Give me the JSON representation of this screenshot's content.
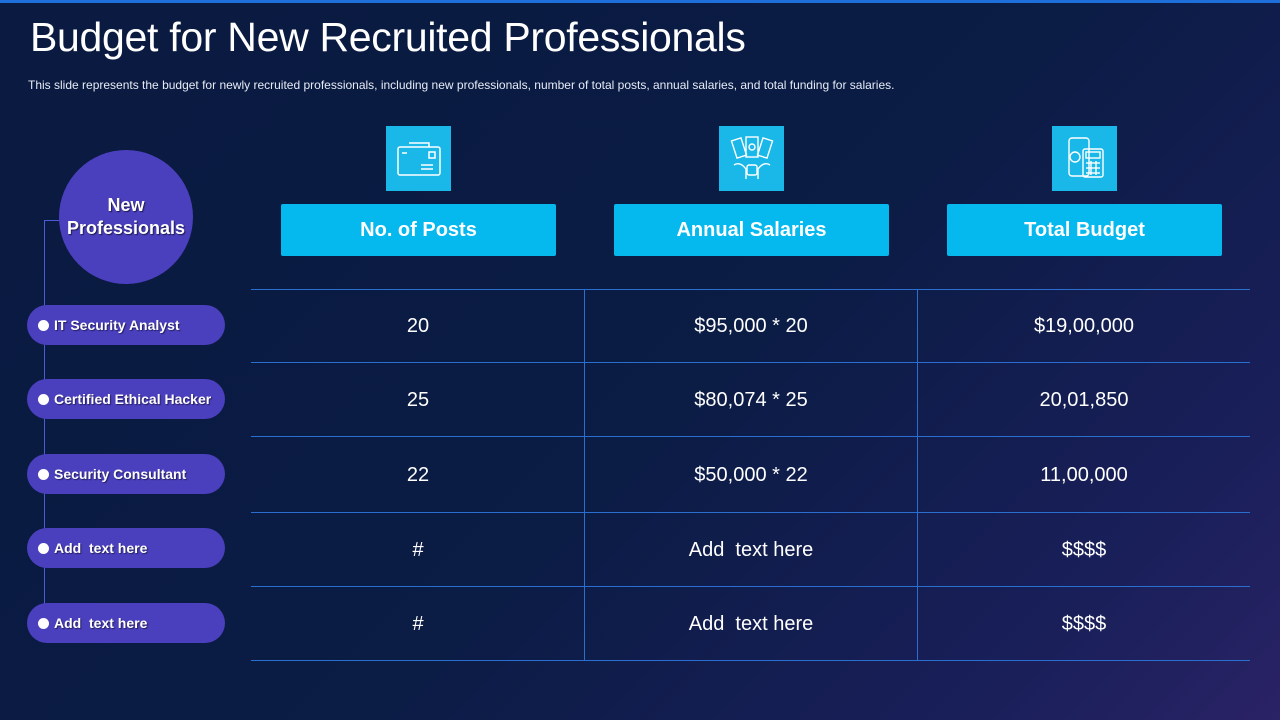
{
  "title": "Budget for New Recruited Professionals",
  "subtitle": "This slide represents the budget for newly recruited professionals, including new professionals, number of total posts, annual salaries, and total funding for salaries.",
  "side": {
    "heading": "New Professionals",
    "items": [
      "IT Security Analyst",
      "Certified Ethical Hacker",
      "Security Consultant",
      "Add  text here",
      "Add  text here"
    ]
  },
  "columns": [
    "No. of Posts",
    "Annual Salaries",
    "Total Budget"
  ],
  "icons": [
    "envelope-icon",
    "money-hands-icon",
    "phone-calculator-icon"
  ],
  "rows": [
    [
      "20",
      "$95,000 * 20",
      "$19,00,000"
    ],
    [
      "25",
      "$80,074 * 25",
      "20,01,850"
    ],
    [
      "22",
      "$50,000 * 22",
      "11,00,000"
    ],
    [
      "#",
      "Add  text here",
      "$$$$"
    ],
    [
      "#",
      "Add  text here",
      "$$$$"
    ]
  ],
  "colors": {
    "accent": "#05b8ee",
    "pill": "#4a3fbd",
    "grid": "#2a6fd0",
    "background": "#0a1a40"
  }
}
